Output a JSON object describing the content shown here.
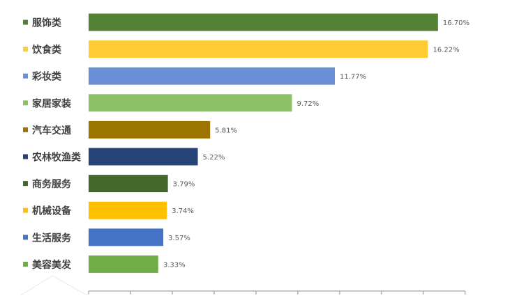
{
  "chart_data": {
    "type": "bar",
    "orientation": "horizontal",
    "categories": [
      "服饰类",
      "饮食类",
      "彩妆类",
      "家居家装",
      "汽车交通",
      "农林牧渔类",
      "商务服务",
      "机械设备",
      "生活服务",
      "美容美发"
    ],
    "values": [
      16.7,
      16.22,
      11.77,
      9.72,
      5.81,
      5.22,
      3.79,
      3.74,
      3.57,
      3.33
    ],
    "value_labels": [
      "16.70%",
      "16.22%",
      "11.77%",
      "9.72%",
      "5.81%",
      "5.22%",
      "3.79%",
      "3.74%",
      "3.57%",
      "3.33%"
    ],
    "colors": [
      "#548235",
      "#FFCD33",
      "#6B8FD4",
      "#8CC168",
      "#9C7400",
      "#264478",
      "#43682B",
      "#FFC000",
      "#4472C4",
      "#70AD47"
    ],
    "xlim": [
      0,
      18
    ],
    "grid": false,
    "legend": "none"
  }
}
